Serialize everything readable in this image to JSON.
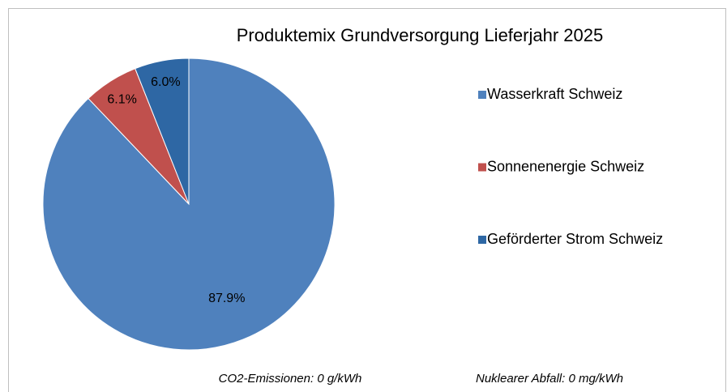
{
  "chart_data": {
    "type": "pie",
    "title": "Produktemix Grundversorgung Lieferjahr 2025",
    "categories": [
      "Wasserkraft Schweiz",
      "Sonnenenergie Schweiz",
      "Geförderter Strom Schweiz"
    ],
    "values": [
      87.9,
      6.1,
      6.0
    ],
    "value_labels": [
      "87.9%",
      "6.1%",
      "6.0%"
    ],
    "colors": [
      "#4f81bd",
      "#c0504d",
      "#2e67a4"
    ],
    "legend": "right",
    "annotations": [
      "CO2-Emissionen: 0 g/kWh",
      "Nuklearer Abfall: 0 mg/kWh"
    ]
  }
}
